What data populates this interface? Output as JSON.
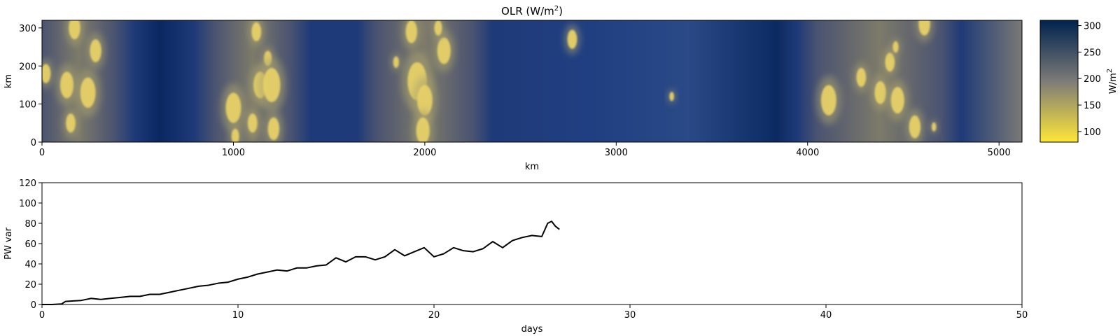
{
  "chart_data": [
    {
      "type": "heatmap",
      "title_base": "OLR (W/m",
      "title_sup": "2",
      "title_end": ")",
      "xlabel": "km",
      "ylabel": "km",
      "xlim": [
        0,
        5120
      ],
      "ylim": [
        0,
        320
      ],
      "xticks": [
        0,
        1000,
        2000,
        3000,
        4000,
        5000
      ],
      "yticks": [
        0,
        100,
        200,
        300
      ],
      "colormap": "cividis_r",
      "colors": {
        "low": "#fde737",
        "mid": "#7c7b78",
        "high": "#00224e"
      },
      "colorbar": {
        "label_base": "W/m",
        "label_sup": "2",
        "range": [
          80,
          310
        ],
        "ticks": [
          100,
          150,
          200,
          250,
          300
        ]
      },
      "convective_bands_km": [
        [
          0,
          380
        ],
        [
          900,
          1300
        ],
        [
          1750,
          2250
        ],
        [
          4050,
          4700
        ]
      ],
      "clouds": [
        {
          "x": 150,
          "y": 50,
          "r": 25
        },
        {
          "x": 130,
          "y": 150,
          "r": 35
        },
        {
          "x": 240,
          "y": 130,
          "r": 40
        },
        {
          "x": 170,
          "y": 300,
          "r": 30
        },
        {
          "x": 20,
          "y": 180,
          "r": 25
        },
        {
          "x": 280,
          "y": 240,
          "r": 30
        },
        {
          "x": 1000,
          "y": 90,
          "r": 40
        },
        {
          "x": 1140,
          "y": 150,
          "r": 35
        },
        {
          "x": 1180,
          "y": 220,
          "r": 20
        },
        {
          "x": 1200,
          "y": 150,
          "r": 45
        },
        {
          "x": 1210,
          "y": 35,
          "r": 30
        },
        {
          "x": 1120,
          "y": 290,
          "r": 25
        },
        {
          "x": 1010,
          "y": 15,
          "r": 20
        },
        {
          "x": 1100,
          "y": 50,
          "r": 25
        },
        {
          "x": 1850,
          "y": 210,
          "r": 15
        },
        {
          "x": 1960,
          "y": 160,
          "r": 50
        },
        {
          "x": 2000,
          "y": 110,
          "r": 40
        },
        {
          "x": 1930,
          "y": 290,
          "r": 30
        },
        {
          "x": 2100,
          "y": 240,
          "r": 35
        },
        {
          "x": 1990,
          "y": 30,
          "r": 35
        },
        {
          "x": 2070,
          "y": 300,
          "r": 20
        },
        {
          "x": 2770,
          "y": 270,
          "r": 25
        },
        {
          "x": 3290,
          "y": 120,
          "r": 12
        },
        {
          "x": 4110,
          "y": 110,
          "r": 40
        },
        {
          "x": 4380,
          "y": 130,
          "r": 30
        },
        {
          "x": 4470,
          "y": 110,
          "r": 35
        },
        {
          "x": 4560,
          "y": 40,
          "r": 30
        },
        {
          "x": 4430,
          "y": 210,
          "r": 25
        },
        {
          "x": 4460,
          "y": 250,
          "r": 15
        },
        {
          "x": 4660,
          "y": 40,
          "r": 12
        },
        {
          "x": 4610,
          "y": 310,
          "r": 30
        },
        {
          "x": 4280,
          "y": 170,
          "r": 25
        }
      ]
    },
    {
      "type": "line",
      "xlabel": "days",
      "ylabel": "PW var",
      "xlim": [
        0,
        50
      ],
      "ylim": [
        0,
        120
      ],
      "xticks": [
        0,
        10,
        20,
        30,
        40,
        50
      ],
      "yticks": [
        0,
        20,
        40,
        60,
        80,
        100,
        120
      ],
      "line_color": "#000000",
      "series": [
        {
          "x": [
            0,
            0.5,
            1.0,
            1.2,
            1.6,
            2.0,
            2.5,
            3.0,
            3.5,
            4.0,
            4.5,
            5.0,
            5.5,
            6.0,
            6.5,
            7.0,
            7.5,
            8.0,
            8.5,
            9.0,
            9.5,
            10.0,
            10.5,
            11.0,
            11.5,
            12.0,
            12.5,
            13.0,
            13.5,
            14.0,
            14.5,
            15.0,
            15.5,
            16.0,
            16.5,
            17.0,
            17.5,
            18.0,
            18.5,
            19.0,
            19.5,
            20.0,
            20.5,
            21.0,
            21.5,
            22.0,
            22.5,
            23.0,
            23.5,
            24.0,
            24.5,
            25.0,
            25.5,
            25.8,
            26.0,
            26.2,
            26.4
          ],
          "y": [
            0,
            0,
            0.5,
            3,
            3.5,
            4,
            6,
            5,
            6,
            7,
            8,
            8,
            10,
            10,
            12,
            14,
            16,
            18,
            19,
            21,
            22,
            25,
            27,
            30,
            32,
            34,
            33,
            36,
            36,
            38,
            39,
            46,
            42,
            47,
            47,
            44,
            47,
            54,
            48,
            52,
            56,
            47,
            50,
            56,
            53,
            52,
            55,
            62,
            56,
            63,
            66,
            68,
            67,
            80,
            82,
            77,
            74
          ]
        }
      ]
    }
  ]
}
